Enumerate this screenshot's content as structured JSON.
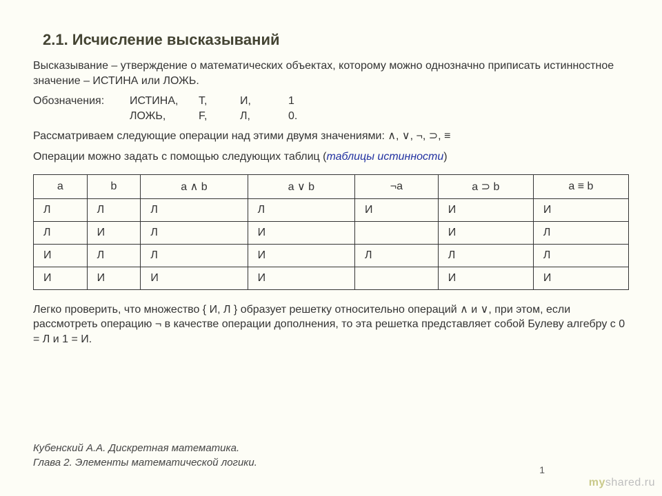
{
  "title": "2.1. Исчисление высказываний",
  "p1": "Высказывание – утверждение о математических объектах, которому можно однозначно приписать истинностное значение – ИСТИНА или ЛОЖЬ.",
  "notation_label": "Обозначения:",
  "notation": {
    "r1": [
      "ИСТИНА,",
      "T,",
      "И,",
      "1"
    ],
    "r2": [
      "ЛОЖЬ,",
      "F,",
      "Л,",
      "0."
    ]
  },
  "p2_pre": "Рассматриваем следующие операции над этими двумя значениями: ",
  "p2_ops": "∧, ∨, ¬, ⊃, ≡",
  "p3_pre": "Операции можно задать с помощью следующих таблиц (",
  "p3_em": "таблицы истинности",
  "p3_post": ")",
  "table": {
    "headers": [
      "a",
      "b",
      "a ∧ b",
      "a ∨ b",
      "¬a",
      "a ⊃ b",
      "a ≡ b"
    ],
    "col_widths": [
      "9%",
      "9%",
      "18%",
      "18%",
      "14%",
      "16%",
      "16%"
    ],
    "rows": [
      [
        "Л",
        "Л",
        "Л",
        "Л",
        "И",
        "И",
        "И"
      ],
      [
        "Л",
        "И",
        "Л",
        "И",
        "",
        "И",
        "Л"
      ],
      [
        "И",
        "Л",
        "Л",
        "И",
        "Л",
        "Л",
        "Л"
      ],
      [
        "И",
        "И",
        "И",
        "И",
        "",
        "И",
        "И"
      ]
    ]
  },
  "p4": "Легко проверить, что множество { И, Л } образует решетку относительно операций ∧ и ∨, при этом, если рассмотреть операцию ¬ в качестве операции дополнения, то эта решетка представляет собой Булеву алгебру с   0 = Л   и   1 = И.",
  "footer1": "Кубенский А.А. Дискретная математика.",
  "footer2": "Глава 2. Элементы математической логики.",
  "page": "1",
  "watermark_my": "my",
  "watermark_shared": "shared.ru"
}
